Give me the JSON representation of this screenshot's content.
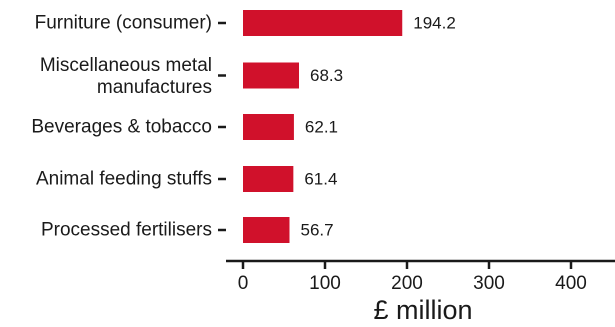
{
  "chart_data": {
    "type": "bar",
    "orientation": "horizontal",
    "categories": [
      "Furniture (consumer)",
      "Miscellaneous metal manufactures",
      "Beverages & tobacco",
      "Animal feeding stuffs",
      "Processed fertilisers"
    ],
    "values": [
      194.2,
      68.3,
      62.1,
      61.4,
      56.7
    ],
    "value_labels": [
      "194.2",
      "68.3",
      "62.1",
      "61.4",
      "56.7"
    ],
    "xlabel": "£ million",
    "xlim": [
      0,
      450
    ],
    "x_ticks": [
      0,
      100,
      200,
      300,
      400
    ],
    "x_tick_labels": [
      "0",
      "100",
      "200",
      "300",
      "400"
    ],
    "grid": false,
    "legend": "none",
    "bar_color": "#d0112b"
  }
}
